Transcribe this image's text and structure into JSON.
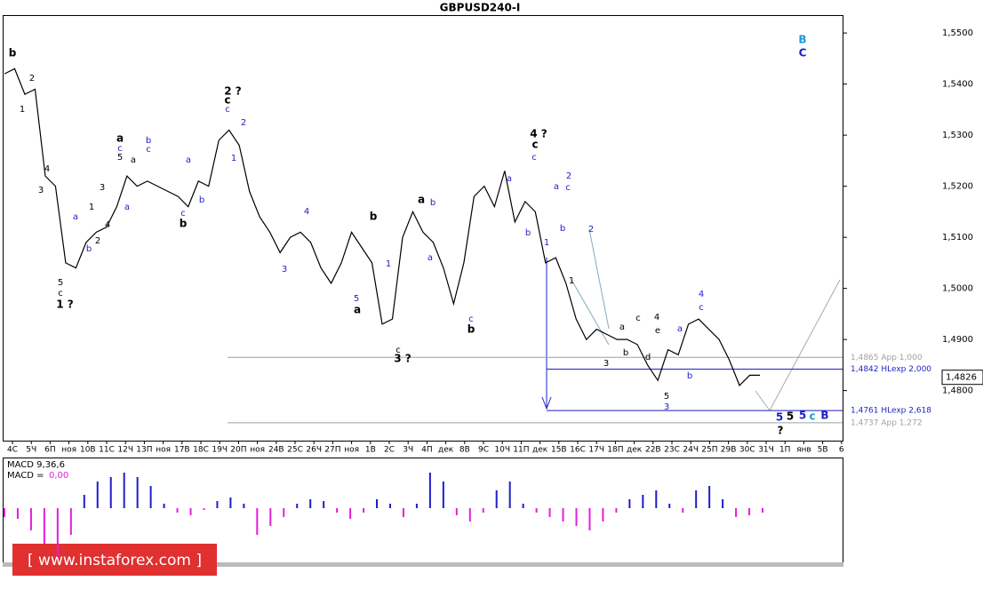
{
  "chart_data": [
    {
      "type": "line",
      "title": "GBPUSD240-I",
      "color": "#000000",
      "values": [
        1.542,
        1.543,
        1.538,
        1.539,
        1.522,
        1.52,
        1.505,
        1.504,
        1.509,
        1.511,
        1.512,
        1.516,
        1.522,
        1.52,
        1.521,
        1.52,
        1.519,
        1.518,
        1.516,
        1.521,
        1.52,
        1.529,
        1.531,
        1.528,
        1.519,
        1.514,
        1.511,
        1.507,
        1.51,
        1.511,
        1.509,
        1.504,
        1.501,
        1.505,
        1.511,
        1.508,
        1.505,
        1.493,
        1.494,
        1.51,
        1.515,
        1.511,
        1.509,
        1.504,
        1.497,
        1.505,
        1.518,
        1.52,
        1.516,
        1.523,
        1.513,
        1.517,
        1.515,
        1.505,
        1.506,
        1.501,
        1.494,
        1.49,
        1.492,
        1.491,
        1.49,
        1.49,
        1.489,
        1.485,
        1.482,
        1.488,
        1.487,
        1.493,
        1.494,
        1.492,
        1.49,
        1.486,
        1.481,
        1.483,
        1.483
      ],
      "ylim": [
        1.4702,
        1.5535
      ],
      "yticks": [
        {
          "value": 1.55,
          "label": "1,5500"
        },
        {
          "value": 1.54,
          "label": "1,5400"
        },
        {
          "value": 1.53,
          "label": "1,5300"
        },
        {
          "value": 1.52,
          "label": "1,5200"
        },
        {
          "value": 1.51,
          "label": "1,5100"
        },
        {
          "value": 1.5,
          "label": "1,5000"
        },
        {
          "value": 1.49,
          "label": "1,4900"
        },
        {
          "value": 1.48,
          "label": "1,4800"
        }
      ],
      "x_labels": [
        "4С",
        "5Ч",
        "6П",
        "ноя",
        "10В",
        "11С",
        "12Ч",
        "13П",
        "ноя",
        "17В",
        "18С",
        "19Ч",
        "20П",
        "ноя",
        "24В",
        "25С",
        "26Ч",
        "27П",
        "ноя",
        "1В",
        "2С",
        "3Ч",
        "4П",
        "дек",
        "8В",
        "9С",
        "10Ч",
        "11П",
        "дек",
        "15В",
        "16С",
        "17Ч",
        "18П",
        "дек",
        "22В",
        "23С",
        "24Ч",
        "25П",
        "29В",
        "30С",
        "31Ч",
        "1П",
        "янв",
        "5В",
        "6"
      ],
      "levels": [
        {
          "value": 1.4865,
          "label": "1,4865 App 1,000",
          "color": "#a0a0a0"
        },
        {
          "value": 1.4842,
          "label": "1,4842 HLexp 2,000",
          "color": "#1e1ec8"
        },
        {
          "value": 1.4761,
          "label": "1,4761 HLexp 2,618",
          "color": "#1e1ec8"
        },
        {
          "value": 1.4737,
          "label": "1,4737 App 1,272",
          "color": "#a0a0a0"
        }
      ],
      "current_price": {
        "value": 1.4826,
        "label": "1,4826"
      },
      "annotations": [
        {
          "text": "b",
          "color": "#000000"
        },
        {
          "text": "2",
          "color": "#000000"
        },
        {
          "text": "1",
          "color": "#000000"
        },
        {
          "text": "4",
          "color": "#000000"
        },
        {
          "text": "3",
          "color": "#000000"
        },
        {
          "text": "5",
          "color": "#000000"
        },
        {
          "text": "c",
          "color": "#000000"
        },
        {
          "text": "1 ?",
          "color": "#000000"
        },
        {
          "text": "a",
          "color": "#1e1ec8"
        },
        {
          "text": "b",
          "color": "#1e1ec8"
        },
        {
          "text": "2",
          "color": "#000000"
        },
        {
          "text": "1",
          "color": "#000000"
        },
        {
          "text": "3",
          "color": "#000000"
        },
        {
          "text": "4",
          "color": "#000000"
        },
        {
          "text": "a",
          "color": "#000000"
        },
        {
          "text": "c",
          "color": "#1e1ec8"
        },
        {
          "text": "5",
          "color": "#000000"
        },
        {
          "text": "a",
          "color": "#1e1ec8"
        },
        {
          "text": "b",
          "color": "#1e1ec8"
        },
        {
          "text": "c",
          "color": "#1e1ec8"
        },
        {
          "text": "a",
          "color": "#000000"
        },
        {
          "text": "a",
          "color": "#1e1ec8"
        },
        {
          "text": "b",
          "color": "#1e1ec8"
        },
        {
          "text": "c",
          "color": "#1e1ec8"
        },
        {
          "text": "b",
          "color": "#000000"
        },
        {
          "text": "2 ?",
          "color": "#000000"
        },
        {
          "text": "c",
          "color": "#000000"
        },
        {
          "text": "c",
          "color": "#1e1ec8"
        },
        {
          "text": "1",
          "color": "#1e1ec8"
        },
        {
          "text": "2",
          "color": "#1e1ec8"
        },
        {
          "text": "4",
          "color": "#1e1ec8"
        },
        {
          "text": "3",
          "color": "#1e1ec8"
        },
        {
          "text": "5",
          "color": "#1e1ec8"
        },
        {
          "text": "a",
          "color": "#000000"
        },
        {
          "text": "b",
          "color": "#000000"
        },
        {
          "text": "1",
          "color": "#1e1ec8"
        },
        {
          "text": "3 ?",
          "color": "#000000"
        },
        {
          "text": "c",
          "color": "#000000"
        },
        {
          "text": "a",
          "color": "#000000"
        },
        {
          "text": "b",
          "color": "#1e1ec8"
        },
        {
          "text": "a",
          "color": "#1e1ec8"
        },
        {
          "text": "c",
          "color": "#1e1ec8"
        },
        {
          "text": "b",
          "color": "#000000"
        },
        {
          "text": "a",
          "color": "#1e1ec8"
        },
        {
          "text": "b",
          "color": "#1e1ec8"
        },
        {
          "text": "1",
          "color": "#1e1ec8"
        },
        {
          "text": "4 ?",
          "color": "#000000"
        },
        {
          "text": "c",
          "color": "#000000"
        },
        {
          "text": "c",
          "color": "#1e1ec8"
        },
        {
          "text": "a",
          "color": "#1e1ec8"
        },
        {
          "text": "2",
          "color": "#1e1ec8"
        },
        {
          "text": "c",
          "color": "#1e1ec8"
        },
        {
          "text": "b",
          "color": "#1e1ec8"
        },
        {
          "text": "2",
          "color": "#1e1ec8"
        },
        {
          "text": "1",
          "color": "#000000"
        },
        {
          "text": "3",
          "color": "#000000"
        },
        {
          "text": "a",
          "color": "#000000"
        },
        {
          "text": "b",
          "color": "#000000"
        },
        {
          "text": "c",
          "color": "#000000"
        },
        {
          "text": "d",
          "color": "#000000"
        },
        {
          "text": "e",
          "color": "#000000"
        },
        {
          "text": "4",
          "color": "#000000"
        },
        {
          "text": "5",
          "color": "#000000"
        },
        {
          "text": "3",
          "color": "#1e1ec8"
        },
        {
          "text": "a",
          "color": "#1e1ec8"
        },
        {
          "text": "b",
          "color": "#1e1ec8"
        },
        {
          "text": "4",
          "color": "#1e1ec8"
        },
        {
          "text": "c",
          "color": "#1e1ec8"
        },
        {
          "text": "5",
          "color": "#1e1ec8"
        },
        {
          "text": "?",
          "color": "#000000"
        },
        {
          "text": "5",
          "color": "#000000"
        },
        {
          "text": "5",
          "color": "#1e1ec8"
        },
        {
          "text": "c",
          "color": "#1a9ad6"
        },
        {
          "text": "B",
          "color": "#1e1ec8"
        },
        {
          "text": "B",
          "color": "#1a9ad6"
        },
        {
          "text": "C",
          "color": "#1e1ec8"
        }
      ],
      "watermark": "[ www.instaforex.com ]"
    },
    {
      "type": "bar",
      "title": "MACD 9,36,6",
      "value_title": "MACD =",
      "value": {
        "value": 0,
        "label": "0,00"
      },
      "colors": {
        "up": "#1e1ec8",
        "down": "#e020d8"
      },
      "ylim": [
        -0.006,
        0.0055
      ],
      "values": [
        -0.001,
        -0.0012,
        -0.0025,
        -0.004,
        -0.0055,
        -0.003,
        0.0015,
        0.003,
        0.0035,
        0.004,
        0.0035,
        0.0025,
        0.0005,
        -0.0005,
        -0.0008,
        -0.0002,
        0.0008,
        0.0012,
        0.0005,
        -0.003,
        -0.002,
        -0.001,
        0.0005,
        0.001,
        0.0008,
        -0.0005,
        -0.0012,
        -0.0005,
        0.001,
        0.0005,
        -0.001,
        0.0005,
        0.004,
        0.003,
        -0.0008,
        -0.0015,
        -0.0005,
        0.002,
        0.003,
        0.0005,
        -0.0005,
        -0.001,
        -0.0015,
        -0.002,
        -0.0025,
        -0.0015,
        -0.0005,
        0.001,
        0.0015,
        0.002,
        0.0005,
        -0.0005,
        0.002,
        0.0025,
        0.001,
        -0.001,
        -0.0008,
        -0.0005
      ]
    }
  ]
}
